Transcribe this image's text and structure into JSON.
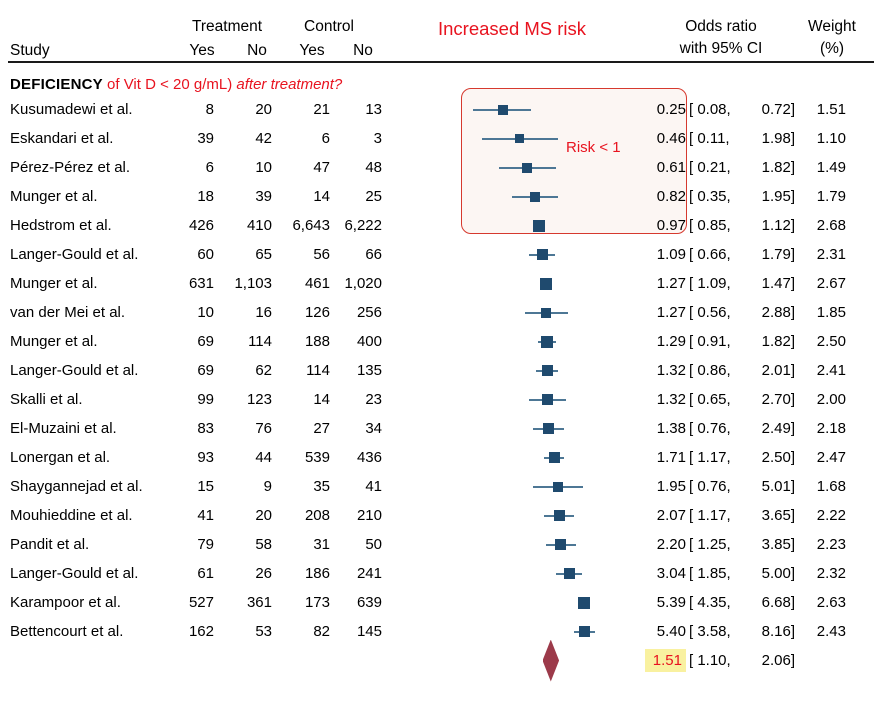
{
  "header": {
    "study": "Study",
    "treatment": "Treatment",
    "control": "Control",
    "yes1": "Yes",
    "no1": "No",
    "yes2": "Yes",
    "no2": "No",
    "increased_ms_risk": "Increased MS risk",
    "or_line1": "Odds ratio",
    "or_line2": "with 95% CI",
    "weight_line1": "Weight",
    "weight_line2": "(%)"
  },
  "section": {
    "title_bold": "DEFICIENCY",
    "title_red": " of Vit D < 20 g/mL)",
    "title_red_italic": " after treatment?"
  },
  "annotations": {
    "risk_lt_1": "Risk < 1"
  },
  "colors": {
    "red": "#e8131f",
    "box_border": "#d6392e",
    "box_fill": "#fcf6f3",
    "square": "#1f4a6e",
    "ci_line": "#4d7795",
    "diamond": "#9c3a4a",
    "highlight": "#f9f1a0",
    "rule": "#1a1a1a"
  },
  "chart_data": {
    "type": "forest",
    "scale": "log",
    "annotation_box_covers_rows": 5,
    "studies": [
      {
        "study": "Kusumadewi et al.",
        "t_yes": "8",
        "t_no": "20",
        "c_yes": "21",
        "c_no": "13",
        "or": 0.25,
        "lo": 0.08,
        "hi": 0.72,
        "weight": 1.51
      },
      {
        "study": "Eskandari et al.",
        "t_yes": "39",
        "t_no": "42",
        "c_yes": "6",
        "c_no": "3",
        "or": 0.46,
        "lo": 0.11,
        "hi": 1.98,
        "weight": 1.1
      },
      {
        "study": "Pérez-Pérez et al.",
        "t_yes": "6",
        "t_no": "10",
        "c_yes": "47",
        "c_no": "48",
        "or": 0.61,
        "lo": 0.21,
        "hi": 1.82,
        "weight": 1.49
      },
      {
        "study": "Munger et al.",
        "t_yes": "18",
        "t_no": "39",
        "c_yes": "14",
        "c_no": "25",
        "or": 0.82,
        "lo": 0.35,
        "hi": 1.95,
        "weight": 1.79
      },
      {
        "study": "Hedstrom et al.",
        "t_yes": "426",
        "t_no": "410",
        "c_yes": "6,643",
        "c_no": "6,222",
        "or": 0.97,
        "lo": 0.85,
        "hi": 1.12,
        "weight": 2.68
      },
      {
        "study": "Langer-Gould et al.",
        "t_yes": "60",
        "t_no": "65",
        "c_yes": "56",
        "c_no": "66",
        "or": 1.09,
        "lo": 0.66,
        "hi": 1.79,
        "weight": 2.31
      },
      {
        "study": "Munger et al.",
        "t_yes": "631",
        "t_no": "1,103",
        "c_yes": "461",
        "c_no": "1,020",
        "or": 1.27,
        "lo": 1.09,
        "hi": 1.47,
        "weight": 2.67
      },
      {
        "study": "van der Mei et al.",
        "t_yes": "10",
        "t_no": "16",
        "c_yes": "126",
        "c_no": "256",
        "or": 1.27,
        "lo": 0.56,
        "hi": 2.88,
        "weight": 1.85
      },
      {
        "study": "Munger et al.",
        "t_yes": "69",
        "t_no": "114",
        "c_yes": "188",
        "c_no": "400",
        "or": 1.29,
        "lo": 0.91,
        "hi": 1.82,
        "weight": 2.5
      },
      {
        "study": "Langer-Gould et al.",
        "t_yes": "69",
        "t_no": "62",
        "c_yes": "114",
        "c_no": "135",
        "or": 1.32,
        "lo": 0.86,
        "hi": 2.01,
        "weight": 2.41
      },
      {
        "study": "Skalli et al.",
        "t_yes": "99",
        "t_no": "123",
        "c_yes": "14",
        "c_no": "23",
        "or": 1.32,
        "lo": 0.65,
        "hi": 2.7,
        "weight": 2.0
      },
      {
        "study": "El-Muzaini et al.",
        "t_yes": "83",
        "t_no": "76",
        "c_yes": "27",
        "c_no": "34",
        "or": 1.38,
        "lo": 0.76,
        "hi": 2.49,
        "weight": 2.18
      },
      {
        "study": "Lonergan et al.",
        "t_yes": "93",
        "t_no": "44",
        "c_yes": "539",
        "c_no": "436",
        "or": 1.71,
        "lo": 1.17,
        "hi": 2.5,
        "weight": 2.47
      },
      {
        "study": "Shaygannejad et al.",
        "t_yes": "15",
        "t_no": "9",
        "c_yes": "35",
        "c_no": "41",
        "or": 1.95,
        "lo": 0.76,
        "hi": 5.01,
        "weight": 1.68
      },
      {
        "study": "Mouhieddine et al.",
        "t_yes": "41",
        "t_no": "20",
        "c_yes": "208",
        "c_no": "210",
        "or": 2.07,
        "lo": 1.17,
        "hi": 3.65,
        "weight": 2.22
      },
      {
        "study": "Pandit et al.",
        "t_yes": "79",
        "t_no": "58",
        "c_yes": "31",
        "c_no": "50",
        "or": 2.2,
        "lo": 1.25,
        "hi": 3.85,
        "weight": 2.23
      },
      {
        "study": "Langer-Gould et al.",
        "t_yes": "61",
        "t_no": "26",
        "c_yes": "186",
        "c_no": "241",
        "or": 3.04,
        "lo": 1.85,
        "hi": 5.0,
        "weight": 2.32
      },
      {
        "study": "Karampoor et al.",
        "t_yes": "527",
        "t_no": "361",
        "c_yes": "173",
        "c_no": "639",
        "or": 5.39,
        "lo": 4.35,
        "hi": 6.68,
        "weight": 2.63
      },
      {
        "study": "Bettencourt et al.",
        "t_yes": "162",
        "t_no": "53",
        "c_yes": "82",
        "c_no": "145",
        "or": 5.4,
        "lo": 3.58,
        "hi": 8.16,
        "weight": 2.43
      }
    ],
    "summary": {
      "or": 1.51,
      "lo": 1.1,
      "hi": 2.06
    }
  }
}
